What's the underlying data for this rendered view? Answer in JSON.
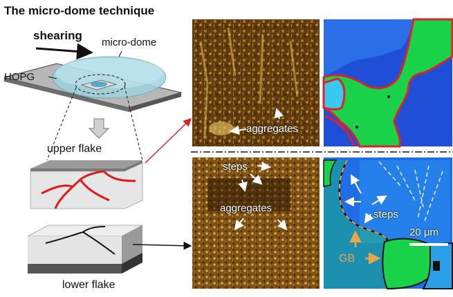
{
  "figure": {
    "title": "The micro-dome technique",
    "shearing_label": "shearing",
    "micro_dome_label": "micro-dome",
    "hopg_label": "HOPG",
    "upper_flake_label": "upper flake",
    "lower_flake_label": "lower flake",
    "aggregates_upper_label": "aggregates",
    "steps_lower_label": "steps",
    "aggregates_lower_label": "aggregates",
    "steps_ebsd_label": "steps",
    "scale_bar_label": "20 μm",
    "gb_label": "GB"
  },
  "colors": {
    "afm_dark": "#3a2206",
    "afm_bright": "#d9a23a",
    "ebsd_blue": "#1f4fd6",
    "ebsd_light_blue": "#2a8cf0",
    "ebsd_green": "#19d24a",
    "ebsd_cyan": "#38c8f0",
    "grain_boundary_red": "#e0202a",
    "gb_label_orange": "#e8a54a",
    "arrow_red": "#e02020"
  }
}
